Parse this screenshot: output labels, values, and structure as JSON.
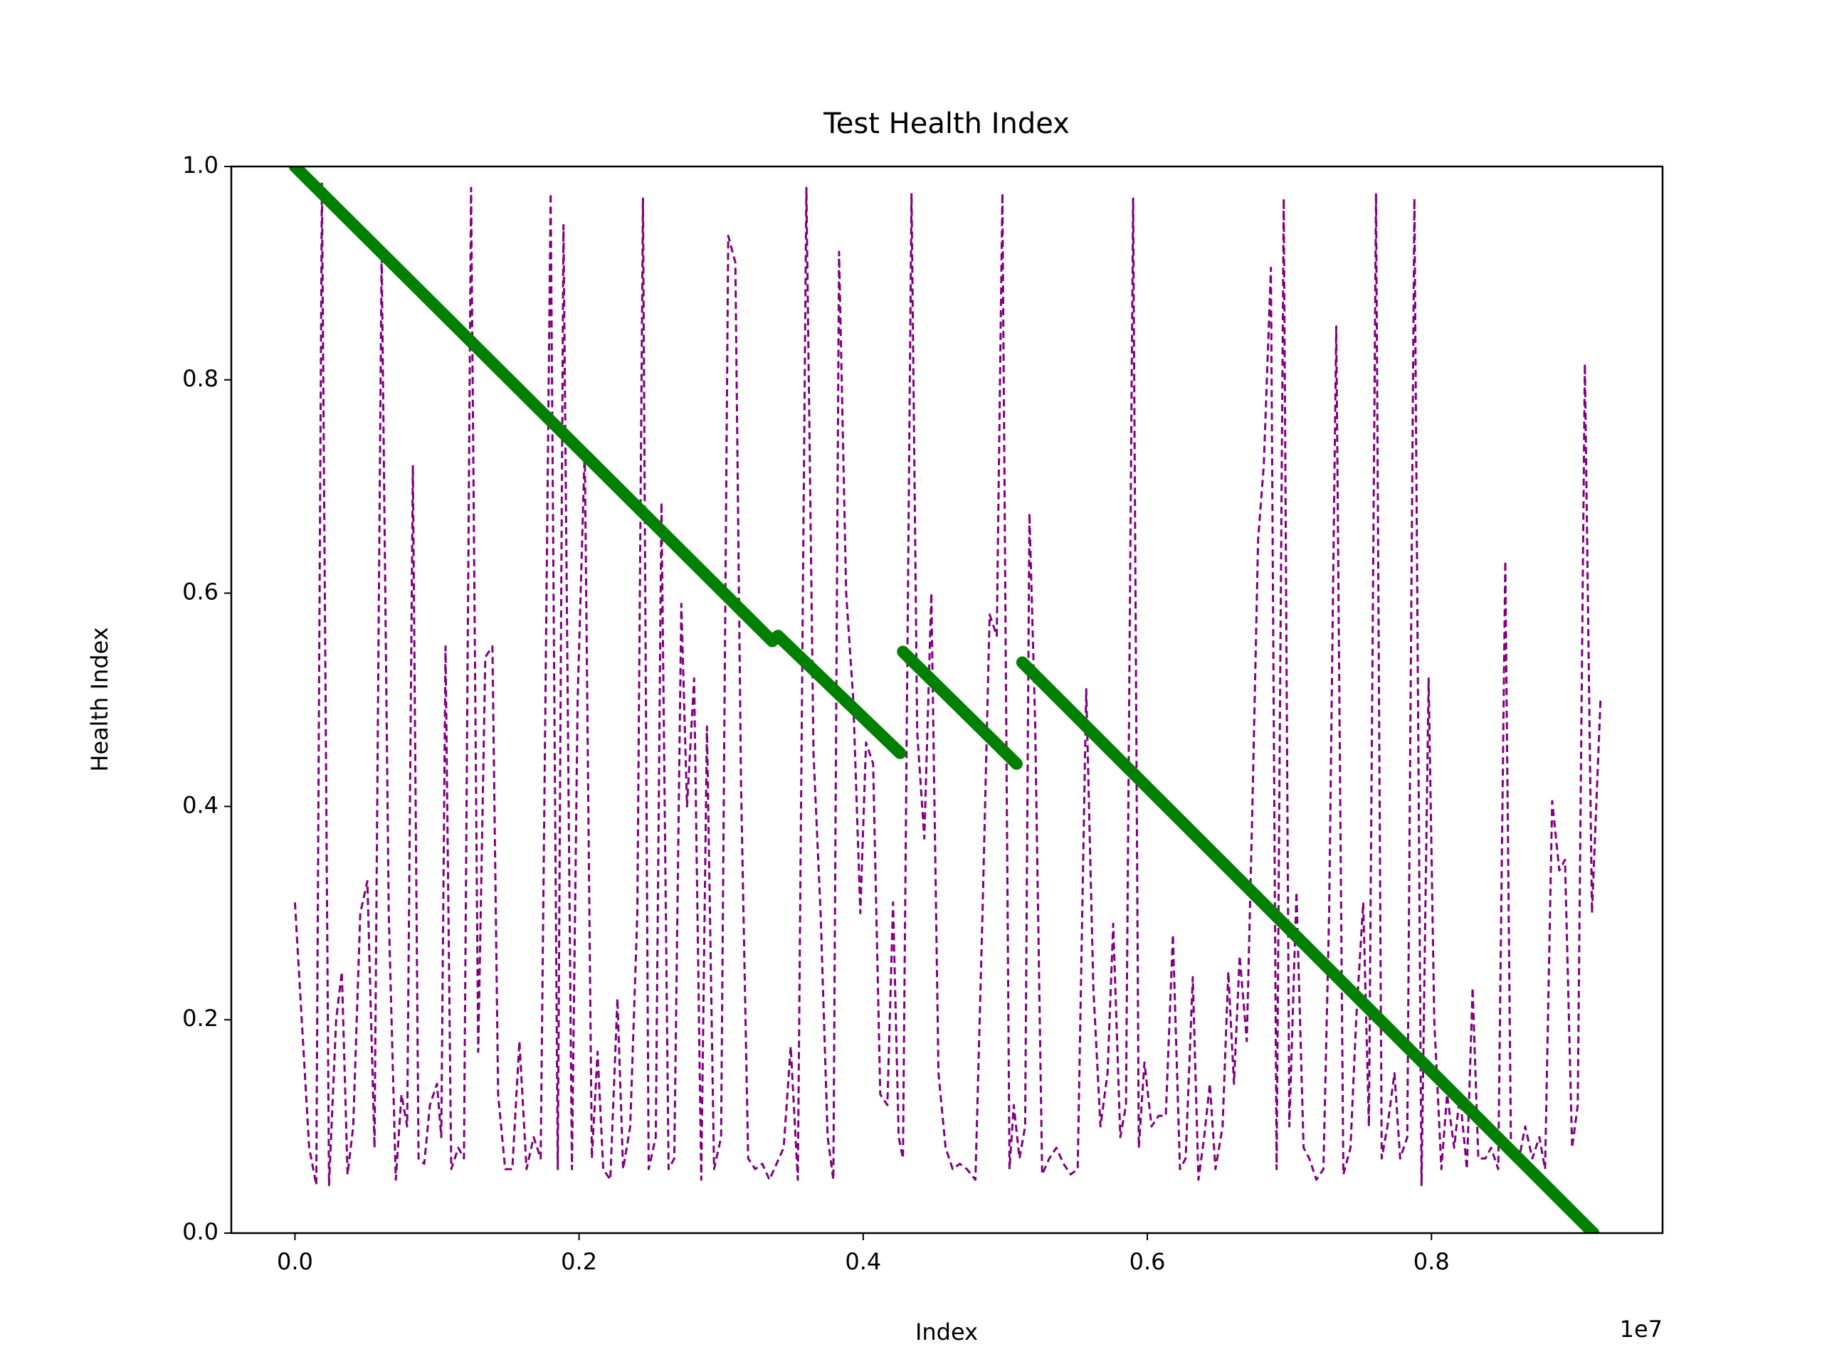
{
  "chart_data": {
    "type": "line",
    "title": "Test Health Index",
    "x_label": "Index",
    "y_label": "Health Index",
    "x_offset_label": "1e7",
    "xlim": [
      -0.0448,
      0.9627
    ],
    "ylim": [
      0,
      1
    ],
    "xticks": [
      {
        "value": 0,
        "label": "0.0"
      },
      0.2,
      0.4,
      0.6,
      0.8
    ],
    "yticks": [
      {
        "value": 0,
        "label": "0.0"
      },
      0.2,
      0.4,
      0.6,
      0.8,
      {
        "value": 1,
        "label": "1.0"
      }
    ],
    "grid": false,
    "series": [
      {
        "color": "#800080",
        "style": "dashed",
        "x": [
          0,
          0.01,
          0.015,
          0.019,
          0.024,
          0.029,
          0.033,
          0.037,
          0.041,
          0.046,
          0.051,
          0.056,
          0.061,
          0.066,
          0.071,
          0.075,
          0.079,
          0.083,
          0.087,
          0.091,
          0.095,
          0.1,
          0.103,
          0.106,
          0.11,
          0.115,
          0.119,
          0.124,
          0.129,
          0.134,
          0.139,
          0.143,
          0.148,
          0.153,
          0.158,
          0.163,
          0.168,
          0.173,
          0.18,
          0.185,
          0.189,
          0.195,
          0.199,
          0.204,
          0.209,
          0.213,
          0.217,
          0.222,
          0.227,
          0.231,
          0.236,
          0.241,
          0.245,
          0.249,
          0.254,
          0.258,
          0.263,
          0.267,
          0.272,
          0.276,
          0.281,
          0.286,
          0.29,
          0.295,
          0.3,
          0.305,
          0.31,
          0.314,
          0.319,
          0.324,
          0.329,
          0.334,
          0.339,
          0.344,
          0.349,
          0.354,
          0.36,
          0.365,
          0.37,
          0.375,
          0.379,
          0.383,
          0.388,
          0.393,
          0.398,
          0.402,
          0.407,
          0.412,
          0.417,
          0.421,
          0.425,
          0.428,
          0.434,
          0.438,
          0.443,
          0.448,
          0.453,
          0.458,
          0.463,
          0.468,
          0.473,
          0.479,
          0.484,
          0.489,
          0.494,
          0.498,
          0.503,
          0.506,
          0.51,
          0.514,
          0.517,
          0.521,
          0.526,
          0.531,
          0.536,
          0.541,
          0.546,
          0.551,
          0.557,
          0.562,
          0.567,
          0.572,
          0.576,
          0.581,
          0.585,
          0.59,
          0.594,
          0.598,
          0.603,
          0.608,
          0.613,
          0.618,
          0.623,
          0.627,
          0.632,
          0.636,
          0.64,
          0.644,
          0.648,
          0.653,
          0.657,
          0.661,
          0.665,
          0.67,
          0.674,
          0.678,
          0.682,
          0.687,
          0.691,
          0.696,
          0.7,
          0.705,
          0.71,
          0.714,
          0.719,
          0.724,
          0.728,
          0.733,
          0.738,
          0.743,
          0.747,
          0.752,
          0.756,
          0.761,
          0.765,
          0.769,
          0.774,
          0.778,
          0.783,
          0.788,
          0.793,
          0.798,
          0.802,
          0.807,
          0.811,
          0.816,
          0.82,
          0.825,
          0.829,
          0.833,
          0.838,
          0.842,
          0.847,
          0.852,
          0.856,
          0.861,
          0.866,
          0.871,
          0.876,
          0.88,
          0.885,
          0.89,
          0.894,
          0.899,
          0.903,
          0.908,
          0.913,
          0.919
        ],
        "values": [
          0.31,
          0.08,
          0.045,
          0.985,
          0.045,
          0.2,
          0.245,
          0.055,
          0.1,
          0.3,
          0.33,
          0.08,
          0.92,
          0.3,
          0.05,
          0.13,
          0.1,
          0.72,
          0.07,
          0.065,
          0.12,
          0.14,
          0.09,
          0.55,
          0.06,
          0.08,
          0.07,
          0.98,
          0.17,
          0.54,
          0.55,
          0.13,
          0.06,
          0.06,
          0.18,
          0.06,
          0.09,
          0.07,
          0.975,
          0.06,
          0.945,
          0.06,
          0.5,
          0.735,
          0.07,
          0.17,
          0.06,
          0.05,
          0.22,
          0.06,
          0.1,
          0.3,
          0.97,
          0.06,
          0.09,
          0.685,
          0.06,
          0.07,
          0.59,
          0.4,
          0.52,
          0.05,
          0.475,
          0.06,
          0.09,
          0.935,
          0.91,
          0.42,
          0.07,
          0.06,
          0.065,
          0.05,
          0.065,
          0.08,
          0.175,
          0.05,
          0.98,
          0.45,
          0.3,
          0.09,
          0.05,
          0.92,
          0.6,
          0.5,
          0.3,
          0.46,
          0.44,
          0.13,
          0.12,
          0.31,
          0.09,
          0.07,
          0.975,
          0.47,
          0.37,
          0.6,
          0.15,
          0.08,
          0.06,
          0.065,
          0.06,
          0.05,
          0.3,
          0.58,
          0.56,
          0.975,
          0.06,
          0.12,
          0.07,
          0.1,
          0.675,
          0.48,
          0.055,
          0.07,
          0.08,
          0.065,
          0.055,
          0.06,
          0.51,
          0.23,
          0.1,
          0.15,
          0.29,
          0.09,
          0.12,
          0.97,
          0.08,
          0.16,
          0.1,
          0.11,
          0.11,
          0.28,
          0.06,
          0.07,
          0.24,
          0.05,
          0.09,
          0.14,
          0.06,
          0.1,
          0.245,
          0.14,
          0.26,
          0.18,
          0.4,
          0.65,
          0.72,
          0.905,
          0.06,
          0.97,
          0.1,
          0.32,
          0.08,
          0.07,
          0.05,
          0.06,
          0.3,
          0.85,
          0.055,
          0.08,
          0.2,
          0.31,
          0.1,
          0.975,
          0.07,
          0.1,
          0.15,
          0.07,
          0.09,
          0.97,
          0.045,
          0.52,
          0.2,
          0.06,
          0.13,
          0.08,
          0.13,
          0.06,
          0.23,
          0.07,
          0.07,
          0.08,
          0.06,
          0.63,
          0.08,
          0.065,
          0.1,
          0.07,
          0.09,
          0.06,
          0.405,
          0.34,
          0.35,
          0.08,
          0.12,
          0.815,
          0.3,
          0.5
        ]
      },
      {
        "color": "#008000",
        "style": "solid",
        "x": [
          0,
          0.336,
          0.34,
          0.426,
          0.427,
          0.428,
          0.508,
          0.51,
          0.512,
          0.914
        ],
        "values": [
          1.0,
          0.555,
          0.56,
          0.45,
          null,
          0.545,
          0.44,
          null,
          0.535,
          0.0
        ]
      }
    ]
  }
}
